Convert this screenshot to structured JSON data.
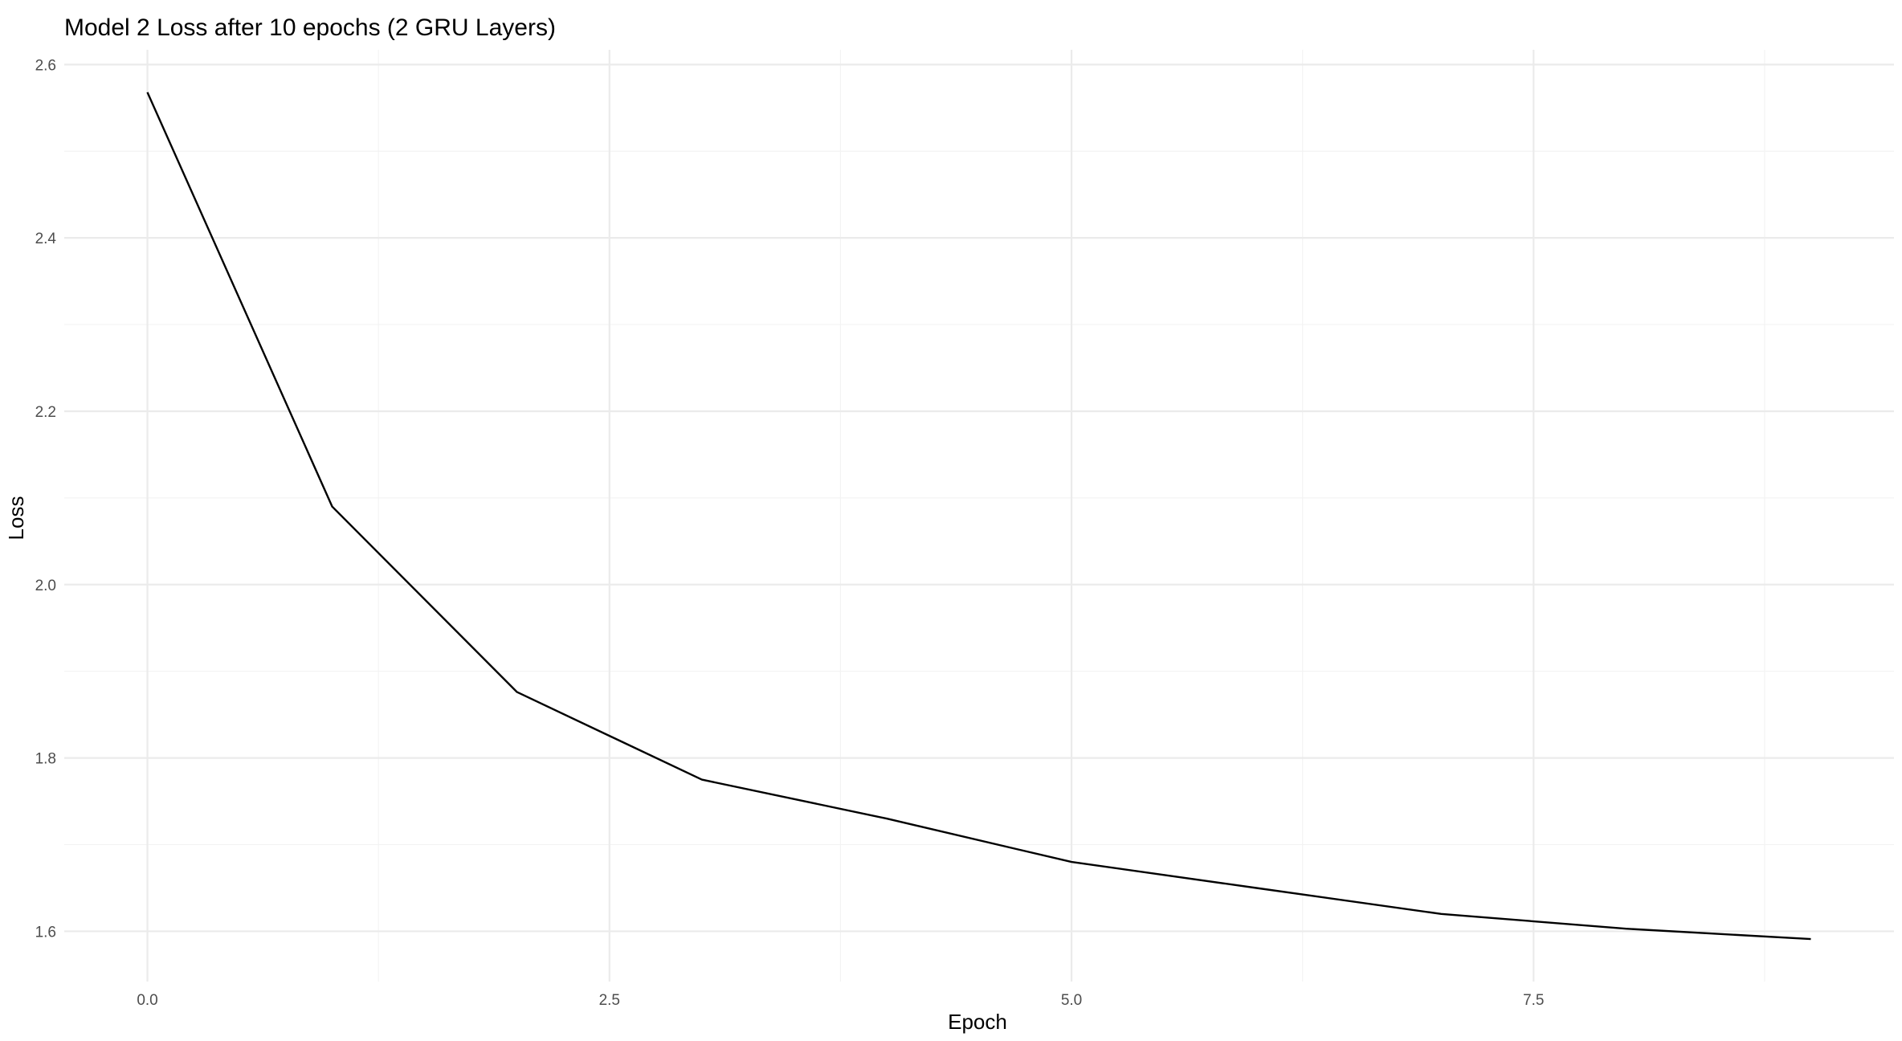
{
  "chart_data": {
    "type": "line",
    "title": "Model 2 Loss after 10 epochs (2 GRU Layers)",
    "xlabel": "Epoch",
    "ylabel": "Loss",
    "x": [
      0,
      1,
      2,
      3,
      4,
      5,
      6,
      7,
      8,
      9
    ],
    "series": [
      {
        "values": [
          2.568,
          2.09,
          1.876,
          1.775,
          1.73,
          1.68,
          1.65,
          1.62,
          1.603,
          1.591
        ],
        "color": "#000000"
      }
    ],
    "xlim": [
      -0.45,
      9.45
    ],
    "ylim": [
      1.542,
      2.617
    ],
    "xticks": [
      0.0,
      2.5,
      5.0,
      7.5
    ],
    "xtick_labels": [
      "0.0",
      "2.5",
      "5.0",
      "7.5"
    ],
    "yticks": [
      1.6,
      1.8,
      2.0,
      2.2,
      2.4,
      2.6
    ],
    "ytick_labels": [
      "1.6",
      "1.8",
      "2.0",
      "2.2",
      "2.4",
      "2.6"
    ],
    "grid": true,
    "legend": "none"
  }
}
